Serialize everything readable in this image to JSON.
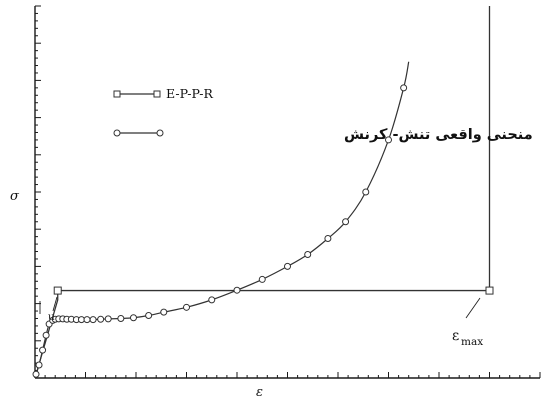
{
  "chart_data": {
    "type": "line",
    "xlabel": "ε",
    "ylabel": "σ",
    "xlim": [
      0,
      1
    ],
    "ylim": [
      0,
      1
    ],
    "grid": false,
    "legend_position": "upper-left",
    "series": [
      {
        "name": "E-P-P-R",
        "marker": "square",
        "color": "#444444",
        "x": [
          0,
          0.045,
          0.045,
          0.9,
          0.9
        ],
        "y": [
          0,
          0.21,
          0.235,
          0.235,
          1.0
        ],
        "marker_x": [
          0.045,
          0.9
        ],
        "marker_y": [
          0.235,
          0.235
        ]
      },
      {
        "name": "منحنی واقعی تنش- کرنش",
        "marker": "circle",
        "color": "#444444",
        "x": [
          0.002,
          0.008,
          0.015,
          0.022,
          0.028,
          0.035,
          0.04,
          0.047,
          0.055,
          0.063,
          0.072,
          0.082,
          0.092,
          0.103,
          0.115,
          0.13,
          0.145,
          0.17,
          0.195,
          0.225,
          0.255,
          0.3,
          0.35,
          0.4,
          0.45,
          0.5,
          0.54,
          0.58,
          0.615,
          0.655,
          0.7,
          0.73
        ],
        "y": [
          0.01,
          0.035,
          0.075,
          0.115,
          0.145,
          0.155,
          0.158,
          0.159,
          0.159,
          0.158,
          0.158,
          0.157,
          0.157,
          0.157,
          0.157,
          0.158,
          0.159,
          0.16,
          0.162,
          0.168,
          0.177,
          0.19,
          0.21,
          0.236,
          0.265,
          0.3,
          0.332,
          0.375,
          0.42,
          0.5,
          0.64,
          0.78
        ],
        "line_end_x": 0.74,
        "line_end_y": 0.85
      }
    ],
    "annotations": [
      {
        "name": "epsilon-max",
        "text": "ε",
        "subscript": "max",
        "x": 0.85,
        "y": 0.1
      }
    ]
  },
  "legend": {
    "series1_label": "E-P-P-R",
    "series2_label": "منحنی واقعی تنش- کرنش"
  },
  "annotation_max": {
    "symbol": "ε",
    "subscript": "max"
  },
  "axes": {
    "x_label": "ε",
    "y_label": "σ"
  }
}
